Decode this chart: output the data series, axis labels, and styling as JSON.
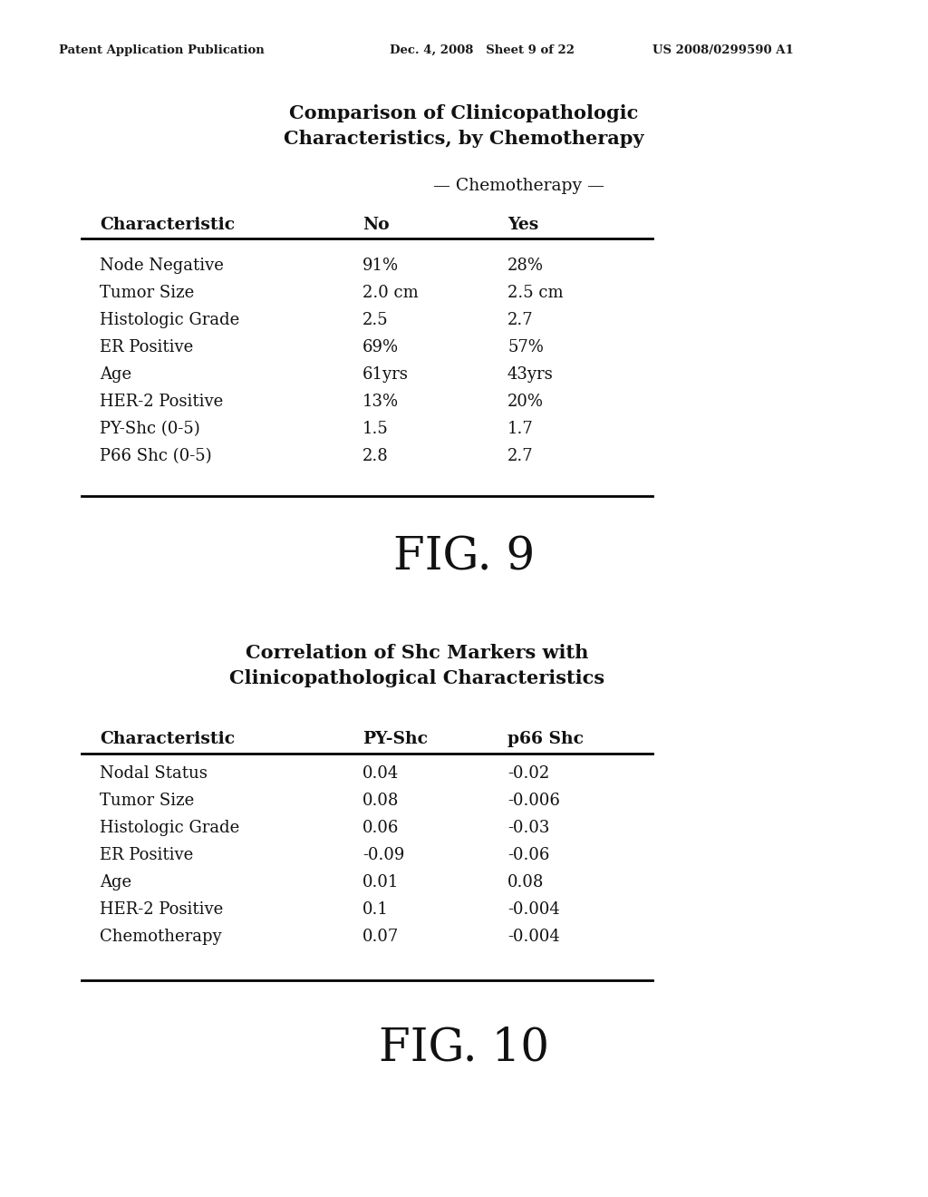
{
  "background_color": "#ffffff",
  "page_header_left": "Patent Application Publication",
  "page_header_mid": "Dec. 4, 2008   Sheet 9 of 22",
  "page_header_right": "US 2008/0299590 A1",
  "table1_title_line1": "Comparison of Clinicopathologic",
  "table1_title_line2": "Characteristics, by Chemotherapy",
  "table1_chemotherapy_label": "— Chemotherapy —",
  "table1_col_header": [
    "Characteristic",
    "No",
    "Yes"
  ],
  "table1_rows": [
    [
      "Node Negative",
      "91%",
      "28%"
    ],
    [
      "Tumor Size",
      "2.0 cm",
      "2.5 cm"
    ],
    [
      "Histologic Grade",
      "2.5",
      "2.7"
    ],
    [
      "ER Positive",
      "69%",
      "57%"
    ],
    [
      "Age",
      "61yrs",
      "43yrs"
    ],
    [
      "HER-2 Positive",
      "13%",
      "20%"
    ],
    [
      "PY-Shc (0-5)",
      "1.5",
      "1.7"
    ],
    [
      "P66 Shc (0-5)",
      "2.8",
      "2.7"
    ]
  ],
  "fig9_label": "FIG. 9",
  "table2_title_line1": "Correlation of Shc Markers with",
  "table2_title_line2": "Clinicopathological Characteristics",
  "table2_col_header": [
    "Characteristic",
    "PY-Shc",
    "p66 Shc"
  ],
  "table2_rows": [
    [
      "Nodal Status",
      "0.04",
      "-0.02"
    ],
    [
      "Tumor Size",
      "0.08",
      "-0.006"
    ],
    [
      "Histologic Grade",
      "0.06",
      "-0.03"
    ],
    [
      "ER Positive",
      "-0.09",
      "-0.06"
    ],
    [
      "Age",
      "0.01",
      "0.08"
    ],
    [
      "HER-2 Positive",
      "0.1",
      "-0.004"
    ],
    [
      "Chemotherapy",
      "0.07",
      "-0.004"
    ]
  ],
  "fig10_label": "FIG. 10"
}
